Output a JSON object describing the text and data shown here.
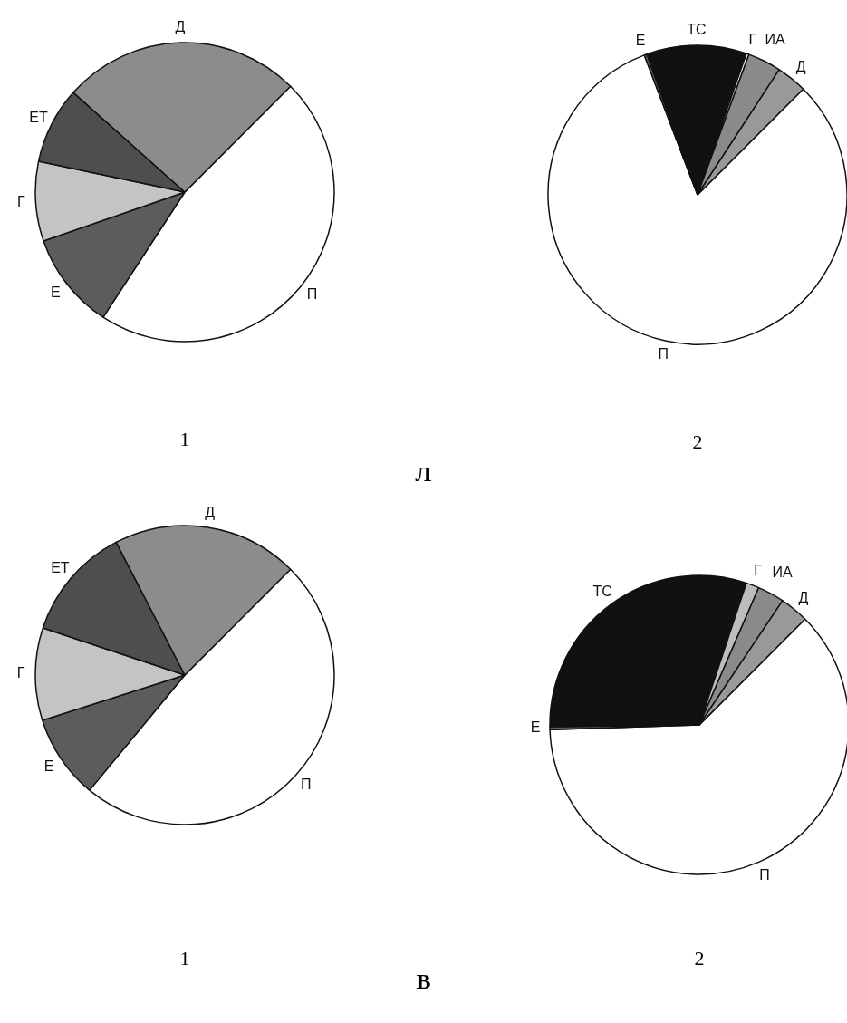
{
  "chart_data": [
    {
      "type": "pie",
      "title": "1",
      "annotations": [
        "Л"
      ],
      "categories": [
        "П",
        "Е",
        "Г",
        "ЕТ",
        "Д"
      ],
      "values": [
        46.7,
        10.5,
        8.6,
        8.3,
        25.9
      ],
      "colors": [
        "#ffffff",
        "#5c5c5c",
        "#c4c4c4",
        "#4e4e4e",
        "#8c8c8c"
      ]
    },
    {
      "type": "pie",
      "title": "2",
      "categories": [
        "П",
        "Е",
        "ТС",
        "Г",
        "ИА",
        "Д"
      ],
      "values": [
        81.7,
        0.3,
        10.8,
        0.3,
        3.6,
        3.3
      ],
      "colors": [
        "#ffffff",
        "#5c5c5c",
        "#111111",
        "#e6e6e6",
        "#8a8a8a",
        "#999999"
      ]
    },
    {
      "type": "pie",
      "title": "1",
      "annotations": [
        "В"
      ],
      "categories": [
        "П",
        "Е",
        "Г",
        "ЕТ",
        "Д"
      ],
      "values": [
        48.5,
        9.1,
        10.0,
        12.3,
        20.1
      ],
      "colors": [
        "#ffffff",
        "#5c5c5c",
        "#c4c4c4",
        "#4e4e4e",
        "#8c8c8c"
      ]
    },
    {
      "type": "pie",
      "title": "2",
      "categories": [
        "П",
        "Е",
        "ТС",
        "Г",
        "ИА",
        "Д"
      ],
      "values": [
        62.0,
        0.3,
        30.3,
        1.4,
        2.9,
        3.1
      ],
      "colors": [
        "#ffffff",
        "#5c5c5c",
        "#111111",
        "#bdbdbd",
        "#8a8a8a",
        "#999999"
      ]
    }
  ]
}
